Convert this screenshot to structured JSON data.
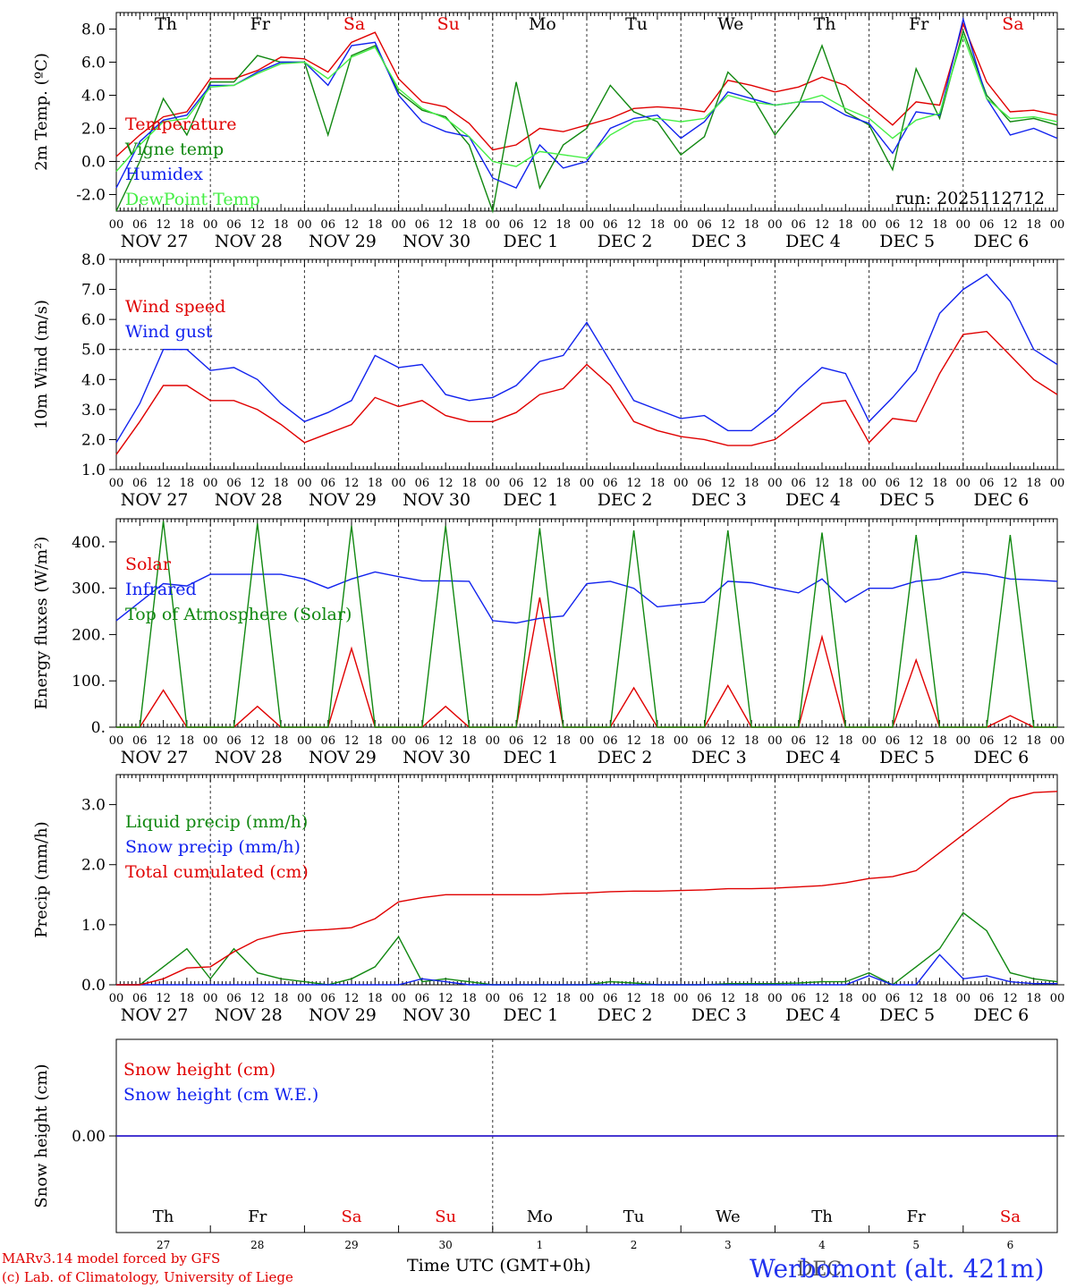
{
  "chart_data": [
    {
      "id": "temp",
      "type": "line",
      "ylabel": "2m Temp. (ºC)",
      "ylim": [
        -3.0,
        9.0
      ],
      "yticks": [
        -2.0,
        0.0,
        2.0,
        4.0,
        6.0,
        8.0
      ],
      "ytick_labels": [
        "-2.0",
        "0.0",
        "2.0",
        "4.0",
        "6.0",
        "8.0"
      ],
      "dashed_ref": 0.0,
      "annotation": "run: 2025112712",
      "weekdays": [
        "Th",
        "Fr",
        "Sa",
        "Su",
        "Mo",
        "Tu",
        "We",
        "Th",
        "Fr",
        "Sa"
      ],
      "weekday_colors": [
        "#000000",
        "#000000",
        "#e00000",
        "#e00000",
        "#000000",
        "#000000",
        "#000000",
        "#000000",
        "#000000",
        "#e00000"
      ],
      "x_hours": [
        0,
        6,
        12,
        18,
        24,
        30,
        36,
        42,
        48,
        54,
        60,
        66,
        72,
        78,
        84,
        90,
        96,
        102,
        108,
        114,
        120,
        126,
        132,
        138,
        144,
        150,
        156,
        162,
        168,
        174,
        180,
        186,
        192,
        198,
        204,
        210,
        216,
        222,
        228,
        234,
        240
      ],
      "series": [
        {
          "name": "Temperature",
          "color": "#e00000",
          "values": [
            0.3,
            1.6,
            2.7,
            3.0,
            5.0,
            5.0,
            5.5,
            6.3,
            6.2,
            5.4,
            7.2,
            7.8,
            5.0,
            3.6,
            3.3,
            2.3,
            0.7,
            1.0,
            2.0,
            1.8,
            2.2,
            2.6,
            3.2,
            3.3,
            3.2,
            3.0,
            4.9,
            4.6,
            4.2,
            4.5,
            5.1,
            4.6,
            3.4,
            2.2,
            3.6,
            3.4,
            8.3,
            4.8,
            3.0,
            3.1,
            2.8
          ]
        },
        {
          "name": "Vigne temp",
          "color": "#118811",
          "values": [
            -3.0,
            0.0,
            3.8,
            1.6,
            4.8,
            4.8,
            6.4,
            6.0,
            6.0,
            1.6,
            6.4,
            7.0,
            4.2,
            3.1,
            2.7,
            1.0,
            -3.0,
            4.8,
            -1.6,
            1.0,
            2.0,
            4.6,
            3.0,
            2.4,
            0.4,
            1.5,
            5.4,
            4.0,
            1.6,
            3.4,
            7.0,
            3.0,
            2.2,
            -0.5,
            5.6,
            2.6,
            7.9,
            4.0,
            2.4,
            2.6,
            2.2
          ]
        },
        {
          "name": "Humidex",
          "color": "#1122ee",
          "values": [
            -1.6,
            1.2,
            2.5,
            2.8,
            4.6,
            4.6,
            5.4,
            6.0,
            6.0,
            4.6,
            7.0,
            7.2,
            4.0,
            2.4,
            1.8,
            1.5,
            -1.0,
            -1.6,
            1.0,
            -0.4,
            0.0,
            2.0,
            2.6,
            2.8,
            1.4,
            2.4,
            4.2,
            3.8,
            3.4,
            3.6,
            3.6,
            2.8,
            2.3,
            0.5,
            3.0,
            2.8,
            8.6,
            3.8,
            1.6,
            2.0,
            1.4
          ]
        },
        {
          "name": "DewPoint Temp",
          "color": "#44ee44",
          "values": [
            -0.6,
            1.0,
            2.4,
            2.6,
            4.5,
            4.6,
            5.3,
            5.9,
            6.0,
            5.0,
            6.3,
            6.9,
            4.4,
            3.2,
            2.6,
            1.5,
            0.0,
            -0.3,
            0.6,
            0.4,
            0.2,
            1.6,
            2.4,
            2.6,
            2.4,
            2.6,
            4.0,
            3.6,
            3.4,
            3.6,
            4.0,
            3.2,
            2.6,
            1.4,
            2.5,
            2.9,
            7.6,
            3.8,
            2.6,
            2.7,
            2.4
          ]
        }
      ]
    },
    {
      "id": "wind",
      "type": "line",
      "ylabel": "10m Wind (m/s)",
      "ylim": [
        1.0,
        8.0
      ],
      "yticks": [
        1.0,
        2.0,
        3.0,
        4.0,
        5.0,
        6.0,
        7.0,
        8.0
      ],
      "ytick_labels": [
        "1.0",
        "2.0",
        "3.0",
        "4.0",
        "5.0",
        "6.0",
        "7.0",
        "8.0"
      ],
      "dashed_ref": 5.0,
      "x_hours": [
        0,
        6,
        12,
        18,
        24,
        30,
        36,
        42,
        48,
        54,
        60,
        66,
        72,
        78,
        84,
        90,
        96,
        102,
        108,
        114,
        120,
        126,
        132,
        138,
        144,
        150,
        156,
        162,
        168,
        174,
        180,
        186,
        192,
        198,
        204,
        210,
        216,
        222,
        228,
        234,
        240
      ],
      "series": [
        {
          "name": "Wind speed",
          "color": "#e00000",
          "values": [
            1.5,
            2.6,
            3.8,
            3.8,
            3.3,
            3.3,
            3.0,
            2.5,
            1.9,
            2.2,
            2.5,
            3.4,
            3.1,
            3.3,
            2.8,
            2.6,
            2.6,
            2.9,
            3.5,
            3.7,
            4.5,
            3.8,
            2.6,
            2.3,
            2.1,
            2.0,
            1.8,
            1.8,
            2.0,
            2.6,
            3.2,
            3.3,
            1.9,
            2.7,
            2.6,
            4.2,
            5.5,
            5.6,
            4.8,
            4.0,
            3.5
          ]
        },
        {
          "name": "Wind gust",
          "color": "#1122ee",
          "values": [
            1.9,
            3.2,
            5.0,
            5.0,
            4.3,
            4.4,
            4.0,
            3.2,
            2.6,
            2.9,
            3.3,
            4.8,
            4.4,
            4.5,
            3.5,
            3.3,
            3.4,
            3.8,
            4.6,
            4.8,
            5.9,
            4.6,
            3.3,
            3.0,
            2.7,
            2.8,
            2.3,
            2.3,
            2.9,
            3.7,
            4.4,
            4.2,
            2.6,
            3.4,
            4.3,
            6.2,
            7.0,
            7.5,
            6.6,
            5.0,
            4.5
          ]
        }
      ]
    },
    {
      "id": "energy",
      "type": "line",
      "ylabel": "Energy fluxes (W/m²)",
      "ylim": [
        0,
        450
      ],
      "yticks": [
        0,
        100,
        200,
        300,
        400
      ],
      "ytick_labels": [
        "0.",
        "100.",
        "200.",
        "300.",
        "400."
      ],
      "x_hours": [
        0,
        6,
        12,
        18,
        24,
        30,
        36,
        42,
        48,
        54,
        60,
        66,
        72,
        78,
        84,
        90,
        96,
        102,
        108,
        114,
        120,
        126,
        132,
        138,
        144,
        150,
        156,
        162,
        168,
        174,
        180,
        186,
        192,
        198,
        204,
        210,
        216,
        222,
        228,
        234,
        240
      ],
      "series": [
        {
          "name": "Solar",
          "color": "#e00000",
          "values": [
            0,
            0,
            80,
            0,
            0,
            0,
            45,
            0,
            0,
            0,
            170,
            0,
            0,
            0,
            45,
            0,
            0,
            0,
            280,
            0,
            0,
            0,
            85,
            0,
            0,
            0,
            90,
            0,
            0,
            0,
            195,
            0,
            0,
            0,
            145,
            0,
            0,
            0,
            25,
            0,
            0
          ]
        },
        {
          "name": "Infrared",
          "color": "#1122ee",
          "values": [
            230,
            270,
            310,
            305,
            330,
            330,
            330,
            330,
            320,
            300,
            320,
            335,
            325,
            316,
            316,
            315,
            230,
            225,
            235,
            240,
            310,
            315,
            300,
            260,
            265,
            270,
            315,
            312,
            300,
            290,
            320,
            270,
            300,
            300,
            315,
            320,
            335,
            330,
            320,
            318,
            315
          ]
        },
        {
          "name": "Top of Atmosphere (Solar)",
          "color": "#118811",
          "values": [
            0,
            0,
            445,
            0,
            0,
            0,
            440,
            0,
            0,
            0,
            435,
            0,
            0,
            0,
            435,
            0,
            0,
            0,
            430,
            0,
            0,
            0,
            425,
            0,
            0,
            0,
            425,
            0,
            0,
            0,
            420,
            0,
            0,
            0,
            415,
            0,
            0,
            0,
            415,
            0,
            0
          ]
        }
      ]
    },
    {
      "id": "precip",
      "type": "line",
      "ylabel": "Precip (mm/h)",
      "ylim": [
        0,
        3.5
      ],
      "yticks": [
        0.0,
        1.0,
        2.0,
        3.0
      ],
      "ytick_labels": [
        "0.0",
        "1.0",
        "2.0",
        "3.0"
      ],
      "x_hours": [
        0,
        6,
        12,
        18,
        24,
        30,
        36,
        42,
        48,
        54,
        60,
        66,
        72,
        78,
        84,
        90,
        96,
        102,
        108,
        114,
        120,
        126,
        132,
        138,
        144,
        150,
        156,
        162,
        168,
        174,
        180,
        186,
        192,
        198,
        204,
        210,
        216,
        222,
        228,
        234,
        240
      ],
      "series": [
        {
          "name": "Liquid precip (mm/h)",
          "color": "#118811",
          "values": [
            0,
            0,
            0.3,
            0.6,
            0.1,
            0.6,
            0.2,
            0.1,
            0.05,
            0,
            0.1,
            0.3,
            0.8,
            0.05,
            0.1,
            0.05,
            0,
            0,
            0,
            0,
            0,
            0.05,
            0.03,
            0,
            0,
            0,
            0.02,
            0.02,
            0.02,
            0.03,
            0.05,
            0.05,
            0.2,
            0,
            0.3,
            0.6,
            1.2,
            0.9,
            0.2,
            0.1,
            0.05
          ]
        },
        {
          "name": "Snow precip (mm/h)",
          "color": "#1122ee",
          "values": [
            0,
            0,
            0,
            0,
            0,
            0,
            0,
            0,
            0,
            0,
            0,
            0,
            0,
            0.1,
            0.05,
            0,
            0,
            0,
            0,
            0,
            0,
            0,
            0,
            0,
            0,
            0,
            0,
            0,
            0,
            0,
            0,
            0,
            0.15,
            0,
            0,
            0.5,
            0.1,
            0.15,
            0.05,
            0.02,
            0.02
          ]
        },
        {
          "name": "Total cumulated (cm)",
          "color": "#e00000",
          "values": [
            0,
            0,
            0.1,
            0.28,
            0.3,
            0.55,
            0.75,
            0.85,
            0.9,
            0.92,
            0.95,
            1.1,
            1.38,
            1.45,
            1.5,
            1.5,
            1.5,
            1.5,
            1.5,
            1.52,
            1.53,
            1.55,
            1.56,
            1.56,
            1.57,
            1.58,
            1.6,
            1.6,
            1.61,
            1.63,
            1.65,
            1.7,
            1.77,
            1.8,
            1.9,
            2.2,
            2.5,
            2.8,
            3.1,
            3.2,
            3.22
          ]
        }
      ]
    },
    {
      "id": "snow",
      "type": "line",
      "ylabel": "Snow height (cm)",
      "ylim": [
        -1,
        1
      ],
      "yticks": [
        0.0
      ],
      "ytick_labels": [
        "0.00"
      ],
      "series": [
        {
          "name": "Snow height (cm)",
          "color": "#e00000",
          "values": [
            0,
            0
          ]
        },
        {
          "name": "Snow height (cm W.E.)",
          "color": "#1122ee",
          "values": [
            0,
            0
          ]
        }
      ],
      "weekdays": [
        "Th",
        "Fr",
        "Sa",
        "Su",
        "Mo",
        "Tu",
        "We",
        "Th",
        "Fr",
        "Sa"
      ],
      "weekday_colors": [
        "#000000",
        "#000000",
        "#e00000",
        "#e00000",
        "#000000",
        "#000000",
        "#000000",
        "#000000",
        "#000000",
        "#e00000"
      ],
      "day_numbers": [
        "27",
        "28",
        "29",
        "30",
        "1",
        "2",
        "3",
        "4",
        "5",
        "6"
      ],
      "month_label": "DEC"
    }
  ],
  "x_axis": {
    "hour_labels": [
      "00",
      "06",
      "12",
      "18"
    ],
    "end_label": "00",
    "date_labels": [
      "NOV 27",
      "NOV 28",
      "NOV 29",
      "NOV 30",
      "DEC  1",
      "DEC  2",
      "DEC  3",
      "DEC  4",
      "DEC  5",
      "DEC  6"
    ],
    "xlabel": "Time UTC (GMT+0h)"
  },
  "footer": {
    "model_line": "MARv3.14 model forced by GFS",
    "credit_line": "(c) Lab. of Climatology, University of Liege",
    "station": "Werbomont (alt. 421m)"
  }
}
